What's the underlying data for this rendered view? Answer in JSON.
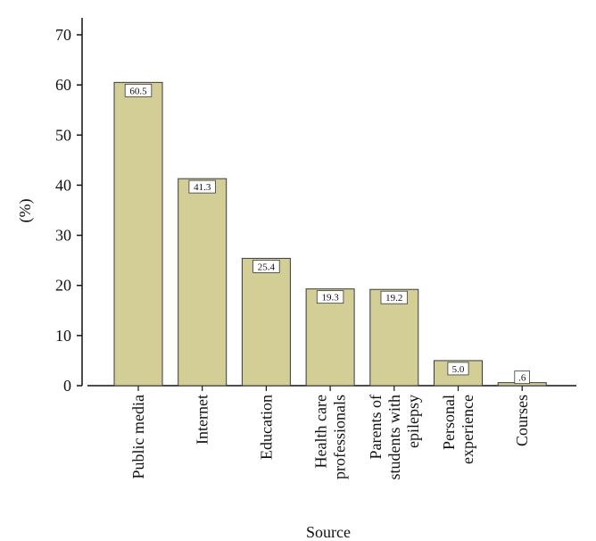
{
  "chart_data": {
    "type": "bar",
    "categories": [
      [
        "Public media"
      ],
      [
        "Internet"
      ],
      [
        "Education"
      ],
      [
        "Health care",
        "professionals"
      ],
      [
        "Parents of",
        "students with",
        "epilepsy"
      ],
      [
        "Personal",
        "experience"
      ],
      [
        "Courses"
      ]
    ],
    "values": [
      60.5,
      41.3,
      25.4,
      19.3,
      19.2,
      5.0,
      0.6
    ],
    "data_labels": [
      "60.5",
      "41.3",
      "25.4",
      "19.3",
      "19.2",
      "5.0",
      ".6"
    ],
    "title": "",
    "xlabel": "Source",
    "ylabel": "(%)",
    "ylim": [
      0,
      70
    ],
    "yticks": [
      0,
      10,
      20,
      30,
      40,
      50,
      60,
      70
    ],
    "grid": false,
    "legend": "none",
    "colors": {
      "bar_fill": "#d3cd96",
      "bar_stroke": "#3a3a3a",
      "axis": "#111111",
      "label_box": "#ffffff"
    }
  }
}
